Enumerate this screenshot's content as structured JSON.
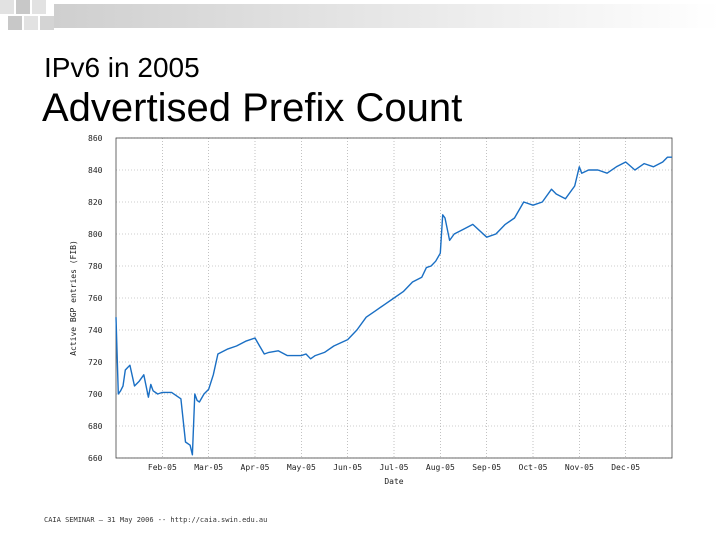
{
  "slide": {
    "subtitle": "IPv6 in 2005",
    "title": "Advertised Prefix Count",
    "footer": "CAIA SEMINAR – 31 May 2006 -- http://caia.swin.edu.au",
    "colors": {
      "line": "#1a6fc4",
      "grid": "#9a9a9a",
      "deco": "#d6d6d6"
    }
  },
  "chart_data": {
    "type": "line",
    "title": "",
    "xlabel": "Date",
    "ylabel": "Active BGP entries (FIB)",
    "ylim": [
      660,
      860
    ],
    "xlim": [
      0,
      12
    ],
    "yticks": [
      "860",
      "840",
      "820",
      "800",
      "780",
      "760",
      "740",
      "720",
      "700",
      "680",
      "660"
    ],
    "xticks": [
      {
        "label": "Feb-05",
        "pos": 1
      },
      {
        "label": "Mar-05",
        "pos": 2
      },
      {
        "label": "Apr-05",
        "pos": 3
      },
      {
        "label": "May-05",
        "pos": 4
      },
      {
        "label": "Jun-05",
        "pos": 5
      },
      {
        "label": "Jul-05",
        "pos": 6
      },
      {
        "label": "Aug-05",
        "pos": 7
      },
      {
        "label": "Sep-05",
        "pos": 8
      },
      {
        "label": "Oct-05",
        "pos": 9
      },
      {
        "label": "Nov-05",
        "pos": 10
      },
      {
        "label": "Dec-05",
        "pos": 11
      }
    ],
    "series": [
      {
        "name": "Active BGP entries",
        "x": [
          0,
          0.05,
          0.1,
          0.15,
          0.2,
          0.3,
          0.4,
          0.5,
          0.6,
          0.7,
          0.75,
          0.8,
          0.9,
          1.0,
          1.2,
          1.4,
          1.5,
          1.6,
          1.65,
          1.7,
          1.75,
          1.8,
          1.9,
          2.0,
          2.1,
          2.2,
          2.4,
          2.6,
          2.8,
          3.0,
          3.1,
          3.2,
          3.3,
          3.5,
          3.7,
          4.0,
          4.1,
          4.2,
          4.3,
          4.5,
          4.7,
          5.0,
          5.2,
          5.4,
          5.6,
          5.8,
          6.0,
          6.2,
          6.4,
          6.6,
          6.7,
          6.8,
          6.9,
          7.0,
          7.05,
          7.1,
          7.2,
          7.3,
          7.5,
          7.7,
          8.0,
          8.2,
          8.4,
          8.6,
          8.8,
          9.0,
          9.2,
          9.4,
          9.5,
          9.7,
          9.9,
          10.0,
          10.05,
          10.2,
          10.4,
          10.6,
          10.8,
          11.0,
          11.2,
          11.4,
          11.6,
          11.8,
          11.9,
          12.0
        ],
        "y": [
          748,
          700,
          702,
          705,
          715,
          718,
          705,
          708,
          712,
          698,
          706,
          702,
          700,
          701,
          701,
          697,
          670,
          668,
          662,
          700,
          696,
          695,
          700,
          703,
          712,
          725,
          728,
          730,
          733,
          735,
          730,
          725,
          726,
          727,
          724,
          724,
          725,
          722,
          724,
          726,
          730,
          734,
          740,
          748,
          752,
          756,
          760,
          764,
          770,
          773,
          779,
          780,
          783,
          788,
          812,
          810,
          796,
          800,
          803,
          806,
          798,
          800,
          806,
          810,
          820,
          818,
          820,
          828,
          825,
          822,
          830,
          842,
          838,
          840,
          840,
          838,
          842,
          845,
          840,
          844,
          842,
          845,
          848,
          848
        ]
      }
    ]
  }
}
